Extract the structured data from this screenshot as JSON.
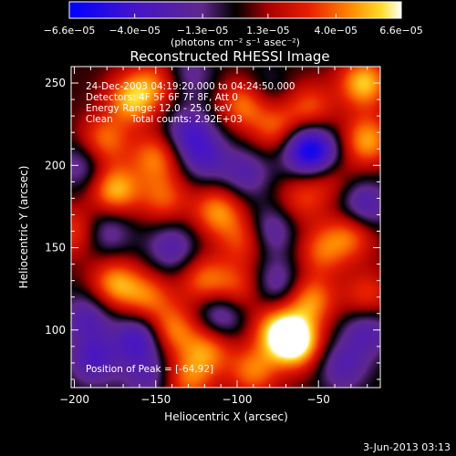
{
  "chart_data": {
    "type": "heatmap",
    "title": "Reconstructed RHESSI Image",
    "xlabel": "Heliocentric X (arcsec)",
    "ylabel": "Heliocentric Y (arcsec)",
    "xlim": [
      -202,
      -12
    ],
    "ylim": [
      65,
      260
    ],
    "x_ticks": [
      -200,
      -150,
      -100,
      -50
    ],
    "x_tick_labels": [
      "−200",
      "−150",
      "−100",
      "−50"
    ],
    "y_ticks": [
      100,
      150,
      200,
      250
    ],
    "y_tick_labels": [
      "100",
      "150",
      "200",
      "250"
    ],
    "colorbar": {
      "min": -6.6e-05,
      "max": 6.6e-05,
      "ticks": [
        -6.6e-05,
        -4e-05,
        -1.3e-05,
        1.3e-05,
        4e-05,
        6.6e-05
      ],
      "tick_labels": [
        "−6.6e−05",
        "−4.0e−05",
        "−1.3e−05",
        "1.3e−05",
        "4.0e−05",
        "6.6e−05"
      ],
      "units": "(photons cm⁻² s⁻¹ asec⁻²)"
    },
    "annotations": {
      "time_range": "24-Dec-2003 04:19:20.000 to 04:24:50.000",
      "detectors": "Detectors: 4F 5F 6F 7F 8F, Att 0",
      "energy_range": "Energy Range: 12.0 - 25.0 keV",
      "method_counts": "Clean      Total counts: 2.92E+03",
      "peak": "Position of Peak = [-64,92]"
    },
    "peak_position": [
      -64,
      92
    ],
    "blobs": [
      {
        "x": -64,
        "y": 92,
        "v": 6.6e-05
      },
      {
        "x": -75,
        "y": 100,
        "v": 4.5e-05
      },
      {
        "x": -55,
        "y": 118,
        "v": 4.2e-05
      },
      {
        "x": -90,
        "y": 75,
        "v": 3.8e-05
      },
      {
        "x": -175,
        "y": 128,
        "v": 4.4e-05
      },
      {
        "x": -155,
        "y": 120,
        "v": 3.5e-05
      },
      {
        "x": -165,
        "y": 240,
        "v": 4.6e-05
      },
      {
        "x": -150,
        "y": 250,
        "v": 3e-05
      },
      {
        "x": -182,
        "y": 215,
        "v": 3.8e-05
      },
      {
        "x": -175,
        "y": 185,
        "v": 5e-05
      },
      {
        "x": -150,
        "y": 205,
        "v": 3.8e-05
      },
      {
        "x": -145,
        "y": 180,
        "v": 3.2e-05
      },
      {
        "x": -112,
        "y": 172,
        "v": 4.2e-05
      },
      {
        "x": -95,
        "y": 155,
        "v": 3.2e-05
      },
      {
        "x": -120,
        "y": 130,
        "v": 3.6e-05
      },
      {
        "x": -100,
        "y": 125,
        "v": 3e-05
      },
      {
        "x": -140,
        "y": 100,
        "v": 4e-05
      },
      {
        "x": -118,
        "y": 88,
        "v": 3.8e-05
      },
      {
        "x": -130,
        "y": 70,
        "v": 3.5e-05
      },
      {
        "x": -95,
        "y": 238,
        "v": 4.5e-05
      },
      {
        "x": -75,
        "y": 222,
        "v": 3.6e-05
      },
      {
        "x": -55,
        "y": 235,
        "v": 3.2e-05
      },
      {
        "x": -22,
        "y": 250,
        "v": 5.2e-05
      },
      {
        "x": -20,
        "y": 215,
        "v": 4.6e-05
      },
      {
        "x": -45,
        "y": 195,
        "v": 3e-05
      },
      {
        "x": -30,
        "y": 158,
        "v": 3.6e-05
      },
      {
        "x": -48,
        "y": 148,
        "v": 3.2e-05
      },
      {
        "x": -20,
        "y": 120,
        "v": 3e-05
      },
      {
        "x": -200,
        "y": 160,
        "v": 3e-05
      },
      {
        "x": -60,
        "y": 180,
        "v": 2.6e-05
      },
      {
        "x": -160,
        "y": 95,
        "v": -4.2e-05
      },
      {
        "x": -188,
        "y": 82,
        "v": -3.6e-05
      },
      {
        "x": -192,
        "y": 108,
        "v": -3e-05
      },
      {
        "x": -130,
        "y": 220,
        "v": -3.4e-05
      },
      {
        "x": -120,
        "y": 205,
        "v": -3e-05
      },
      {
        "x": -140,
        "y": 150,
        "v": -3e-05
      },
      {
        "x": -110,
        "y": 110,
        "v": -3.5e-05
      },
      {
        "x": -50,
        "y": 205,
        "v": -5e-05
      },
      {
        "x": -60,
        "y": 212,
        "v": -4e-05
      },
      {
        "x": -80,
        "y": 160,
        "v": -3.2e-05
      },
      {
        "x": -95,
        "y": 195,
        "v": -2.8e-05
      },
      {
        "x": -22,
        "y": 175,
        "v": -3.6e-05
      },
      {
        "x": -20,
        "y": 100,
        "v": -3.2e-05
      },
      {
        "x": -35,
        "y": 78,
        "v": -3e-05
      },
      {
        "x": -75,
        "y": 128,
        "v": -2.8e-05
      },
      {
        "x": -180,
        "y": 160,
        "v": -2.6e-05
      },
      {
        "x": -195,
        "y": 200,
        "v": -2.6e-05
      },
      {
        "x": -85,
        "y": 245,
        "v": -2e-05
      },
      {
        "x": -130,
        "y": 255,
        "v": -2.2e-05
      },
      {
        "x": -155,
        "y": 72,
        "v": -2.5e-05
      }
    ]
  },
  "footer": {
    "date": "3-Jun-2013 03:13"
  }
}
